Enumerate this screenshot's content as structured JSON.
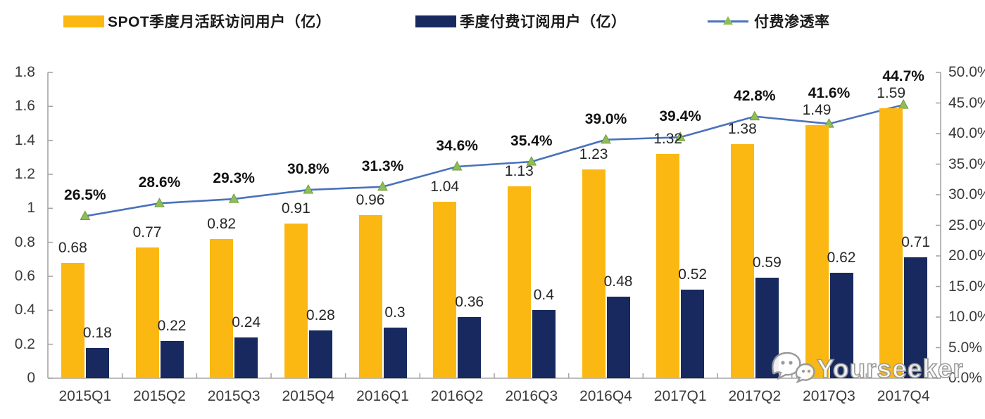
{
  "legend": [
    {
      "label": "SPOT季度月活跃访问用户（亿）",
      "type": "bar",
      "color": "#FBB812"
    },
    {
      "label": "季度付费订阅用户（亿）",
      "type": "bar",
      "color": "#17295F"
    },
    {
      "label": "付费渗透率",
      "type": "line",
      "color": "#4A72BC",
      "marker": "green-triangle",
      "marker_color": "#8FBE56"
    }
  ],
  "watermark": {
    "icon": "wechat-chat-bubbles-icon",
    "text": "Yourseeker"
  },
  "chart_data": {
    "type": "bar+line combo",
    "title": "",
    "categories": [
      "2015Q1",
      "2015Q2",
      "2015Q3",
      "2015Q4",
      "2016Q1",
      "2016Q2",
      "2016Q3",
      "2016Q4",
      "2017Q1",
      "2017Q2",
      "2017Q3",
      "2017Q4"
    ],
    "series": [
      {
        "name": "SPOT季度月活跃访问用户（亿）",
        "type": "bar",
        "axis": "left",
        "color": "#FBB812",
        "values": [
          0.68,
          0.77,
          0.82,
          0.91,
          0.96,
          1.04,
          1.13,
          1.23,
          1.32,
          1.38,
          1.49,
          1.59
        ],
        "labels": [
          "0.68",
          "0.77",
          "0.82",
          "0.91",
          "0.96",
          "1.04",
          "1.13",
          "1.23",
          "1.32",
          "1.38",
          "1.49",
          "1.59"
        ]
      },
      {
        "name": "季度付费订阅用户（亿）",
        "type": "bar",
        "axis": "left",
        "color": "#17295F",
        "values": [
          0.18,
          0.22,
          0.24,
          0.28,
          0.3,
          0.36,
          0.4,
          0.48,
          0.52,
          0.59,
          0.62,
          0.71
        ],
        "labels": [
          "0.18",
          "0.22",
          "0.24",
          "0.28",
          "0.3",
          "0.36",
          "0.4",
          "0.48",
          "0.52",
          "0.59",
          "0.62",
          "0.71"
        ]
      },
      {
        "name": "付费渗透率",
        "type": "line",
        "axis": "right",
        "color": "#4A72BC",
        "marker_color": "#8FBE56",
        "marker_edge": "#6F9C3F",
        "values": [
          26.5,
          28.6,
          29.3,
          30.8,
          31.3,
          34.6,
          35.4,
          39.0,
          39.4,
          42.8,
          41.6,
          44.7
        ],
        "labels": [
          "26.5%",
          "28.6%",
          "29.3%",
          "30.8%",
          "31.3%",
          "34.6%",
          "35.4%",
          "39.0%",
          "39.4%",
          "42.8%",
          "41.6%",
          "44.7%"
        ]
      }
    ],
    "left_axis": {
      "min": 0,
      "max": 1.8,
      "ticks": [
        "0",
        "0.2",
        "0.4",
        "0.6",
        "0.8",
        "1",
        "1.2",
        "1.4",
        "1.6",
        "1.8"
      ]
    },
    "right_axis": {
      "min": 0,
      "max": 50,
      "ticks": [
        "0.0%",
        "5.0%",
        "10.0%",
        "15.0%",
        "20.0%",
        "25.0%",
        "30.0%",
        "35.0%",
        "40.0%",
        "45.0%",
        "50.0%"
      ]
    },
    "grid": false,
    "legend_position": "top",
    "axis_color": "#A6A6A6"
  }
}
